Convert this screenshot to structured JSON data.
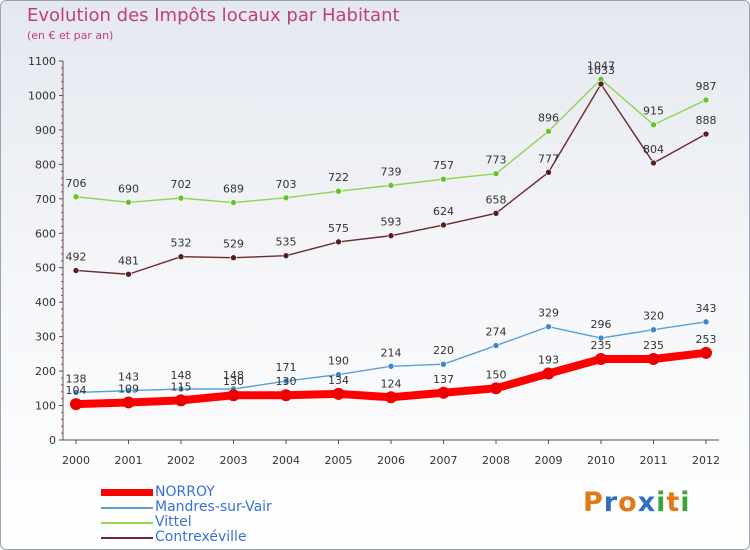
{
  "title": "Evolution des Impôts locaux par Habitant",
  "subtitle": "(en € et par an)",
  "logo": {
    "text": "Proxiti",
    "letters": [
      {
        "char": "P",
        "color": "#e07a18"
      },
      {
        "char": "r",
        "color": "#2f6fc2"
      },
      {
        "char": "o",
        "color": "#e07a18"
      },
      {
        "char": "x",
        "color": "#2f6fc2"
      },
      {
        "char": "i",
        "color": "#3aa63a"
      },
      {
        "char": "t",
        "color": "#e07a18"
      },
      {
        "char": "i",
        "color": "#3aa63a"
      }
    ]
  },
  "chart_data": {
    "type": "line",
    "x": [
      "2000",
      "2001",
      "2002",
      "2003",
      "2004",
      "2005",
      "2006",
      "2007",
      "2008",
      "2009",
      "2010",
      "2011",
      "2012"
    ],
    "ylim": [
      0,
      1100
    ],
    "yticks": [
      "0",
      "100",
      "200",
      "300",
      "400",
      "500",
      "600",
      "700",
      "800",
      "900",
      "1000",
      "1100"
    ],
    "grid": false,
    "legend_position": "bottom-left",
    "series": [
      {
        "name": "Vittel",
        "color": "#8fd64e",
        "marker": "#66c12f",
        "values": [
          706,
          690,
          702,
          689,
          703,
          722,
          739,
          757,
          773,
          896,
          1047,
          915,
          987
        ],
        "labels": [
          "706",
          "690",
          "702",
          "689",
          "703",
          "722",
          "739",
          "757",
          "773",
          "896",
          "1047",
          "915",
          "987"
        ]
      },
      {
        "name": "Contrexéville",
        "color": "#6b2a2e",
        "marker": "#5a1c20",
        "values": [
          492,
          481,
          532,
          529,
          535,
          575,
          593,
          624,
          658,
          777,
          1033,
          804,
          888
        ],
        "labels": [
          "492",
          "481",
          "532",
          "529",
          "535",
          "575",
          "593",
          "624",
          "658",
          "777",
          "1033",
          "804",
          "888"
        ]
      },
      {
        "name": "Mandres-sur-Vair",
        "color": "#5b9fd6",
        "marker": "#3f86c8",
        "values": [
          138,
          143,
          148,
          148,
          171,
          190,
          214,
          220,
          274,
          329,
          296,
          320,
          343
        ],
        "labels": [
          "138",
          "143",
          "148",
          "148",
          "171",
          "190",
          "214",
          "220",
          "274",
          "329",
          "296",
          "320",
          "343"
        ]
      },
      {
        "name": "NORROY",
        "color": "#ff0000",
        "marker": "#ee0000",
        "values": [
          104,
          109,
          115,
          130,
          130,
          134,
          124,
          137,
          150,
          193,
          235,
          235,
          253
        ],
        "labels": [
          "104",
          "109",
          "115",
          "130",
          "130",
          "134",
          "124",
          "137",
          "150",
          "193",
          "235",
          "235",
          "253"
        ]
      }
    ],
    "legend": [
      {
        "name": "NORROY",
        "color": "#ff0000",
        "text_color": "#3a6fe0",
        "thick": true
      },
      {
        "name": "Mandres-sur-Vair",
        "color": "#5b9fd6",
        "text_color": "#3a6fe0",
        "thick": false
      },
      {
        "name": "Vittel",
        "color": "#8fd64e",
        "text_color": "#3a6fe0",
        "thick": false
      },
      {
        "name": "Contrexéville",
        "color": "#6b2a2e",
        "text_color": "#3a6fe0",
        "thick": false
      }
    ]
  }
}
